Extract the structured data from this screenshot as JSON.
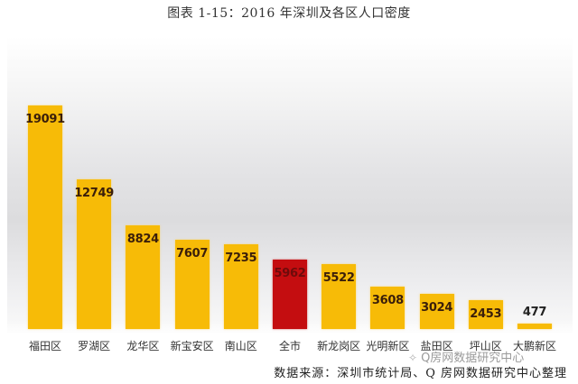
{
  "title": "图表 1-15：2016 年深圳及各区人口密度",
  "source": "数据来源：深圳市统计局、Q 房网数据研究中心整理",
  "watermark": {
    "icon": "wechat-icon",
    "text": "Q房网数据研究中心"
  },
  "colors": {
    "bar": "#f7bb07",
    "highlight_bar": "#c40d10",
    "value_text": "#3a1e0a"
  },
  "chart_data": {
    "type": "bar",
    "title": "图表 1-15：2016 年深圳及各区人口密度",
    "xlabel": "",
    "ylabel": "",
    "grid": false,
    "legend": null,
    "categories": [
      "福田区",
      "罗湖区",
      "龙华区",
      "新宝安区",
      "南山区",
      "全市",
      "新龙岗区",
      "光明新区",
      "盐田区",
      "坪山区",
      "大鹏新区"
    ],
    "values": [
      19091,
      12749,
      8824,
      7607,
      7235,
      5962,
      5522,
      3608,
      3024,
      2453,
      477
    ],
    "labels": [
      "19091",
      "12749",
      "8824",
      "7607",
      "7235",
      "5962",
      "5522",
      "3608",
      "3024",
      "2453",
      "477"
    ],
    "highlight_index": 5,
    "annotations": [
      "数据来源：深圳市统计局、Q 房网数据研究中心整理"
    ]
  }
}
